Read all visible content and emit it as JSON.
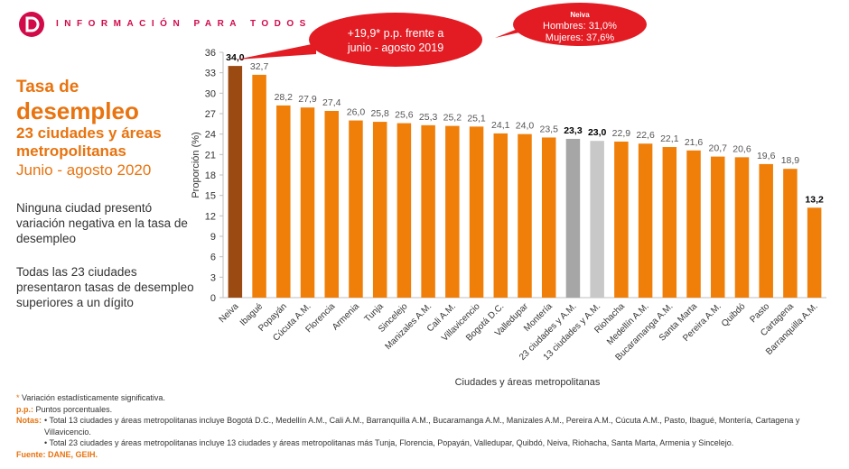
{
  "header": {
    "brand_text": "INFORMACIÓN PARA TODOS"
  },
  "left_panel": {
    "title_line1": "Tasa de",
    "title_line2": "desempleo",
    "title_line3": "23 ciudades y áreas metropolitanas",
    "period": "Junio - agosto 2020",
    "para1": "Ninguna ciudad presentó variación negativa en la tasa de desempleo",
    "para2": "Todas las 23 ciudades presentaron tasas de desempleo superiores a un dígito"
  },
  "callouts": {
    "change": {
      "line1": "+19,9* p.p. frente a",
      "line2": "junio - agosto 2019"
    },
    "neiva": {
      "title": "Neiva",
      "line1": "Hombres: 31,0%",
      "line2": "Mujeres: 37,6%"
    }
  },
  "chart_data": {
    "type": "bar",
    "ylabel": "Proporción (%)",
    "xlabel": "Ciudades y áreas metropolitanas",
    "ylim": [
      0,
      36
    ],
    "yticks": [
      0,
      3,
      6,
      9,
      12,
      15,
      18,
      21,
      24,
      27,
      30,
      33,
      36
    ],
    "categories": [
      "Neiva",
      "Ibagué",
      "Popayán",
      "Cúcuta A.M.",
      "Florencia",
      "Armenia",
      "Tunja",
      "Sincelejo",
      "Manizales A.M.",
      "Cali A.M.",
      "Villavicencio",
      "Bogotá D.C.",
      "Valledupar",
      "Montería",
      "23 ciudades y A.M.",
      "13 ciudades y A.M.",
      "Riohacha",
      "Medellín A.M.",
      "Bucaramanga A.M.",
      "Santa Marta",
      "Pereira A.M.",
      "Quibdó",
      "Pasto",
      "Cartagena",
      "Barranquilla A.M."
    ],
    "values": [
      34.0,
      32.7,
      28.2,
      27.9,
      27.4,
      26.0,
      25.8,
      25.6,
      25.3,
      25.2,
      25.1,
      24.1,
      24.0,
      23.5,
      23.3,
      23.0,
      22.9,
      22.6,
      22.1,
      21.6,
      20.7,
      20.6,
      19.6,
      18.9,
      13.2
    ],
    "value_labels": [
      "34,0",
      "32,7",
      "28,2",
      "27,9",
      "27,4",
      "26,0",
      "25,8",
      "25,6",
      "25,3",
      "25,2",
      "25,1",
      "24,1",
      "24,0",
      "23,5",
      "23,3",
      "23,0",
      "22,9",
      "22,6",
      "22,1",
      "21,6",
      "20,7",
      "20,6",
      "19,6",
      "18,9",
      "13,2"
    ],
    "bold_labels": [
      "Neiva",
      "23 ciudades y A.M.",
      "13 ciudades y A.M.",
      "Barranquilla A.M."
    ],
    "colors": {
      "default": "#f07f0a",
      "highest": "#9b4a12",
      "total23": "#a6a6a6",
      "total13": "#c8c8c8"
    },
    "grid": false
  },
  "footnotes": {
    "star": "*",
    "star_text": "Variación estadísticamente significativa.",
    "pp_key": "p.p.:",
    "pp_text": "Puntos porcentuales.",
    "notes_key": "Notas:",
    "note1": "• Total 13 ciudades y áreas metropolitanas incluye Bogotá D.C., Medellín A.M., Cali A.M., Barranquilla A.M., Bucaramanga A.M., Manizales A.M., Pereira A.M., Cúcuta A.M., Pasto, Ibagué, Montería, Cartagena y Villavicencio.",
    "note2": "• Total 23 ciudades y áreas metropolitanas incluye 13 ciudades y áreas metropolitanas más Tunja, Florencia, Popayán, Valledupar, Quibdó, Neiva, Riohacha, Santa Marta, Armenia y Sincelejo.",
    "source_key": "Fuente:",
    "source_text": "DANE, GEIH."
  }
}
